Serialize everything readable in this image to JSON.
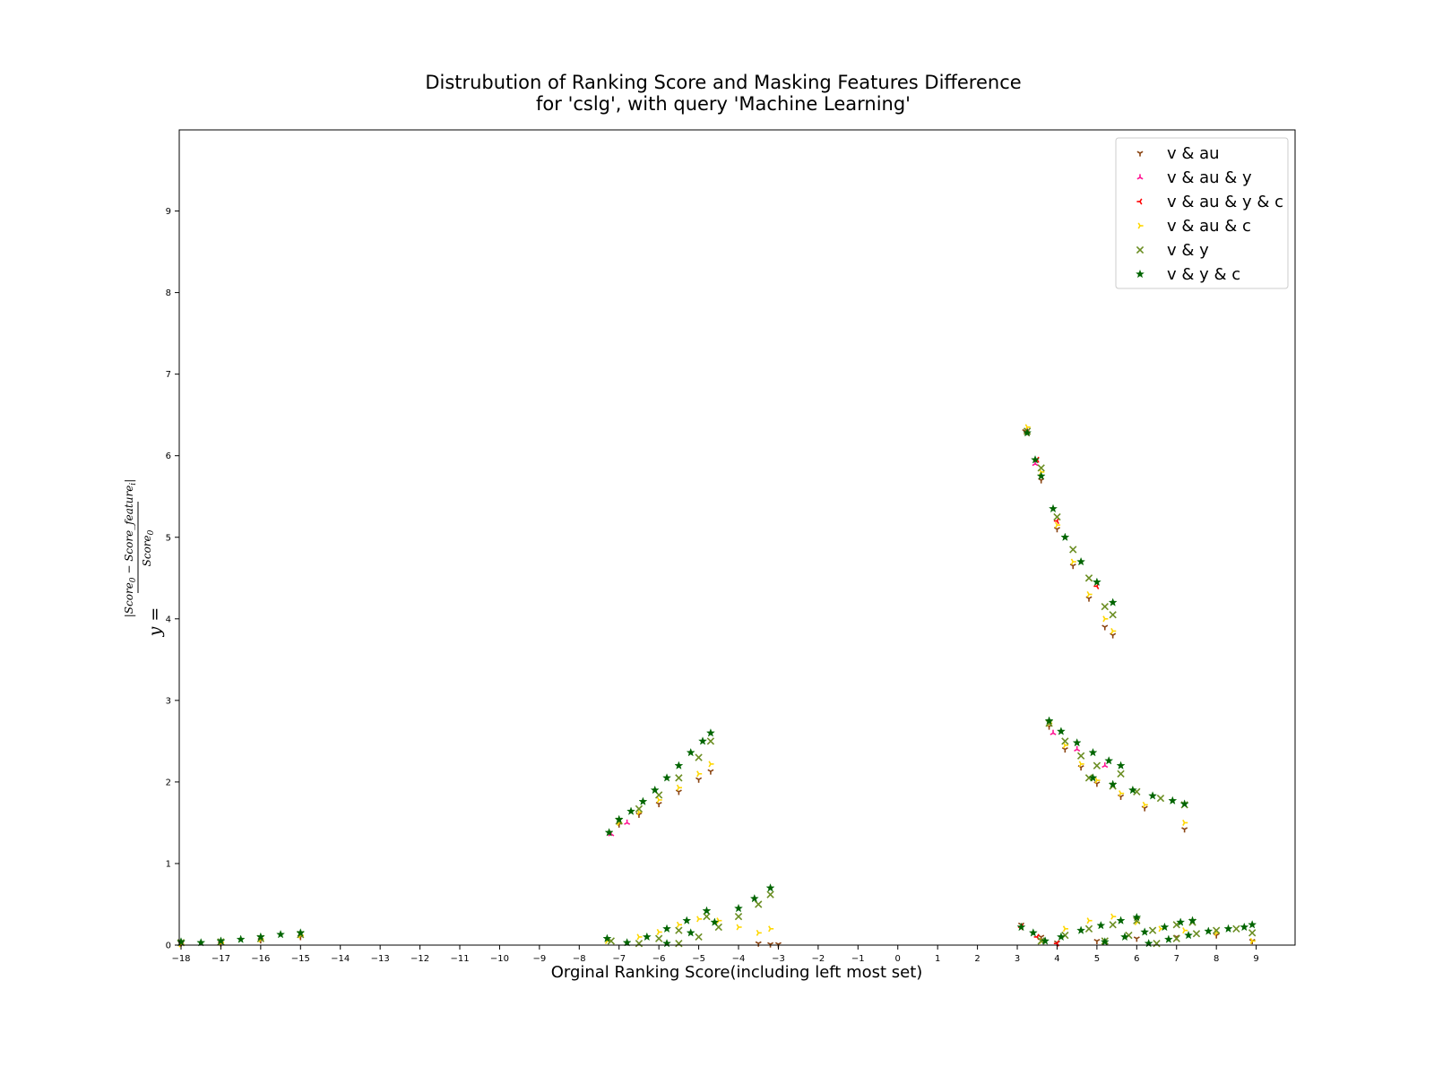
{
  "chart_data": {
    "type": "scatter",
    "title": [
      "Distrubution of Ranking Score and Masking Features Difference",
      "for 'cslg', with query 'Machine Learning'"
    ],
    "xlabel": "Orginal Ranking Score(including left most set)",
    "ylabel": {
      "lhs": "y =",
      "numerator": "|Score",
      "numerator_sub0": "0",
      "numerator_mid": " − Score_feature",
      "numerator_subi": "i",
      "numerator_end": "|",
      "denominator": "Score",
      "denominator_sub0": "0"
    },
    "xlim": [
      -18,
      10
    ],
    "ylim": [
      0,
      10
    ],
    "x_ticks": [
      -18,
      -17,
      -16,
      -15,
      -14,
      -13,
      -12,
      -11,
      -10,
      -9,
      -8,
      -7,
      -6,
      -5,
      -4,
      -3,
      -2,
      -1,
      0,
      1,
      2,
      3,
      4,
      5,
      6,
      7,
      8,
      9
    ],
    "x_tick_labels": [
      "−18",
      "−17",
      "−16",
      "−15",
      "−14",
      "−13",
      "−12",
      "−11",
      "−10",
      "−9",
      "−8",
      "−7",
      "−6",
      "−5",
      "−4",
      "−3",
      "−2",
      "−1",
      "0",
      "1",
      "2",
      "3",
      "4",
      "5",
      "6",
      "7",
      "8",
      "9"
    ],
    "y_ticks": [
      0,
      1,
      2,
      3,
      4,
      5,
      6,
      7,
      8,
      9
    ],
    "y_tick_labels": [
      "0",
      "1",
      "2",
      "3",
      "4",
      "5",
      "6",
      "7",
      "8",
      "9"
    ],
    "grid": false,
    "legend_placement": "upper-right",
    "series": [
      {
        "name": "v & au",
        "color": "#8B4513",
        "marker": "tri_down",
        "segments": [
          {
            "x": [
              -18,
              -17,
              -16,
              -15
            ],
            "y": [
              0.02,
              0.02,
              0.06,
              0.1
            ]
          },
          {
            "x": [
              -7.0,
              -6.5,
              -6.0,
              -5.5,
              -5.0,
              -4.7
            ],
            "y": [
              1.48,
              1.6,
              1.73,
              1.88,
              2.03,
              2.13
            ]
          },
          {
            "x": [
              -3.5,
              -3.2,
              -3.0
            ],
            "y": [
              0.02,
              0.01,
              0.01
            ]
          },
          {
            "x": [
              3.2,
              3.6,
              4.0,
              4.4,
              4.8,
              5.2,
              5.4
            ],
            "y": [
              6.3,
              5.7,
              5.1,
              4.65,
              4.25,
              3.9,
              3.8
            ]
          },
          {
            "x": [
              3.8,
              4.2,
              4.6,
              5.0,
              5.6,
              6.2,
              7.2
            ],
            "y": [
              2.68,
              2.4,
              2.18,
              1.98,
              1.82,
              1.68,
              1.42
            ]
          },
          {
            "x": [
              3.1,
              3.6,
              4.0,
              5.0,
              6.0,
              7.0,
              8.0,
              8.9
            ],
            "y": [
              0.25,
              0.1,
              0.03,
              0.05,
              0.08,
              0.1,
              0.12,
              0.05
            ]
          }
        ]
      },
      {
        "name": "v & au & y",
        "color": "#FF1493",
        "marker": "tri_up",
        "segments": [
          {
            "x": [
              3.25,
              3.45
            ],
            "y": [
              6.3,
              5.9
            ]
          },
          {
            "x": [
              -7.2,
              -6.8
            ],
            "y": [
              1.36,
              1.5
            ]
          },
          {
            "x": [
              3.9,
              4.5,
              5.2
            ],
            "y": [
              2.6,
              2.4,
              2.2
            ]
          }
        ]
      },
      {
        "name": "v & au & y & c",
        "color": "#FF0000",
        "marker": "tri_left",
        "segments": [
          {
            "x": [
              3.25,
              3.5,
              4.0,
              5.0
            ],
            "y": [
              6.28,
              5.95,
              5.2,
              4.4
            ]
          },
          {
            "x": [
              3.1,
              3.5,
              4.0
            ],
            "y": [
              0.22,
              0.1,
              0.02
            ]
          }
        ]
      },
      {
        "name": "v & au & c",
        "color": "#FFD700",
        "marker": "tri_right",
        "segments": [
          {
            "x": [
              -18,
              -17,
              -16,
              -15
            ],
            "y": [
              0.01,
              0.03,
              0.07,
              0.12
            ]
          },
          {
            "x": [
              -7.0,
              -6.5,
              -6.0,
              -5.5,
              -5.0,
              -4.7
            ],
            "y": [
              1.5,
              1.63,
              1.78,
              1.93,
              2.1,
              2.22
            ]
          },
          {
            "x": [
              -7.3,
              -6.5,
              -6.0,
              -5.5,
              -5.0,
              -4.5,
              -4.0,
              -3.5,
              -3.2
            ],
            "y": [
              0.05,
              0.1,
              0.16,
              0.25,
              0.32,
              0.3,
              0.22,
              0.15,
              0.2
            ]
          },
          {
            "x": [
              3.25,
              3.6,
              4.0,
              4.4,
              4.8,
              5.2,
              5.4
            ],
            "y": [
              6.35,
              5.8,
              5.15,
              4.7,
              4.3,
              4.0,
              3.85
            ]
          },
          {
            "x": [
              3.8,
              4.2,
              4.6,
              5.0,
              5.6,
              6.2,
              7.2
            ],
            "y": [
              2.72,
              2.45,
              2.22,
              2.02,
              1.86,
              1.72,
              1.5
            ]
          },
          {
            "x": [
              3.6,
              4.2,
              4.8,
              5.4,
              6.0,
              6.6,
              7.2,
              8.0,
              8.9
            ],
            "y": [
              0.05,
              0.2,
              0.3,
              0.35,
              0.28,
              0.2,
              0.18,
              0.15,
              0.05
            ]
          }
        ]
      },
      {
        "name": "v & y",
        "color": "#6B8E23",
        "marker": "x",
        "segments": [
          {
            "x": [
              -18,
              -17,
              -16,
              -15
            ],
            "y": [
              0.03,
              0.04,
              0.08,
              0.13
            ]
          },
          {
            "x": [
              -7.0,
              -6.5,
              -6.0,
              -5.5,
              -5.0,
              -4.7
            ],
            "y": [
              1.52,
              1.67,
              1.84,
              2.05,
              2.3,
              2.5
            ]
          },
          {
            "x": [
              -7.2,
              -6.5,
              -6.0,
              -5.5,
              -4.8
            ],
            "y": [
              0.05,
              0.02,
              0.08,
              0.18,
              0.35
            ]
          },
          {
            "x": [
              -5.5,
              -5.0,
              -4.5,
              -4.0,
              -3.5,
              -3.2
            ],
            "y": [
              0.02,
              0.1,
              0.22,
              0.35,
              0.5,
              0.62
            ]
          },
          {
            "x": [
              3.25,
              3.6,
              4.0,
              4.4,
              4.8,
              5.2,
              5.4
            ],
            "y": [
              6.3,
              5.85,
              5.25,
              4.85,
              4.5,
              4.15,
              4.05
            ]
          },
          {
            "x": [
              3.8,
              4.2,
              4.6,
              5.0,
              5.6
            ],
            "y": [
              2.72,
              2.5,
              2.32,
              2.2,
              2.1
            ]
          },
          {
            "x": [
              4.8,
              5.4,
              6.0,
              6.6,
              7.2
            ],
            "y": [
              2.05,
              1.95,
              1.88,
              1.8,
              1.72
            ]
          },
          {
            "x": [
              3.6,
              4.2,
              4.8,
              5.4,
              6.0
            ],
            "y": [
              0.05,
              0.12,
              0.2,
              0.25,
              0.3
            ]
          },
          {
            "x": [
              5.2,
              5.8,
              6.4,
              7.0,
              7.4
            ],
            "y": [
              0.05,
              0.12,
              0.18,
              0.25,
              0.28
            ]
          },
          {
            "x": [
              6.5,
              7.0,
              7.5,
              8.0,
              8.5,
              8.9
            ],
            "y": [
              0.02,
              0.08,
              0.14,
              0.18,
              0.2,
              0.15
            ]
          }
        ]
      },
      {
        "name": "v & y & c",
        "color": "#006400",
        "marker": "star",
        "segments": [
          {
            "x": [
              -18,
              -17.5,
              -17,
              -16.5,
              -16,
              -15.5,
              -15
            ],
            "y": [
              0.04,
              0.03,
              0.05,
              0.07,
              0.1,
              0.13,
              0.15
            ]
          },
          {
            "x": [
              -7.25
            ],
            "y": [
              1.38
            ]
          },
          {
            "x": [
              -7.0,
              -6.7,
              -6.4,
              -6.1,
              -5.8,
              -5.5,
              -5.2,
              -4.9,
              -4.7
            ],
            "y": [
              1.54,
              1.64,
              1.76,
              1.9,
              2.05,
              2.2,
              2.36,
              2.5,
              2.6
            ]
          },
          {
            "x": [
              -7.3,
              -6.8,
              -6.3,
              -5.8,
              -5.3,
              -4.8
            ],
            "y": [
              0.08,
              0.03,
              0.1,
              0.2,
              0.3,
              0.42
            ]
          },
          {
            "x": [
              -5.8,
              -5.2,
              -4.6,
              -4.0,
              -3.6,
              -3.2
            ],
            "y": [
              0.02,
              0.15,
              0.28,
              0.45,
              0.57,
              0.7
            ]
          },
          {
            "x": [
              3.25,
              3.45,
              3.6,
              3.9,
              4.2,
              4.6,
              5.0,
              5.4
            ],
            "y": [
              6.28,
              5.95,
              5.75,
              5.35,
              5.0,
              4.7,
              4.45,
              4.2
            ]
          },
          {
            "x": [
              3.8,
              4.1,
              4.5,
              4.9,
              5.3,
              5.6
            ],
            "y": [
              2.75,
              2.62,
              2.48,
              2.36,
              2.26,
              2.2
            ]
          },
          {
            "x": [
              4.9,
              5.4,
              5.9,
              6.4,
              6.9,
              7.2
            ],
            "y": [
              2.05,
              1.97,
              1.9,
              1.83,
              1.77,
              1.73
            ]
          },
          {
            "x": [
              3.1,
              3.4,
              3.7,
              4.1,
              4.6,
              5.1,
              5.6,
              6.0
            ],
            "y": [
              0.22,
              0.15,
              0.05,
              0.1,
              0.18,
              0.24,
              0.3,
              0.34
            ]
          },
          {
            "x": [
              5.2,
              5.7,
              6.2,
              6.7,
              7.1,
              7.4
            ],
            "y": [
              0.04,
              0.1,
              0.16,
              0.22,
              0.28,
              0.3
            ]
          },
          {
            "x": [
              6.3,
              6.8,
              7.3,
              7.8,
              8.3,
              8.7,
              8.9
            ],
            "y": [
              0.02,
              0.07,
              0.12,
              0.17,
              0.2,
              0.22,
              0.25
            ]
          }
        ]
      }
    ]
  }
}
